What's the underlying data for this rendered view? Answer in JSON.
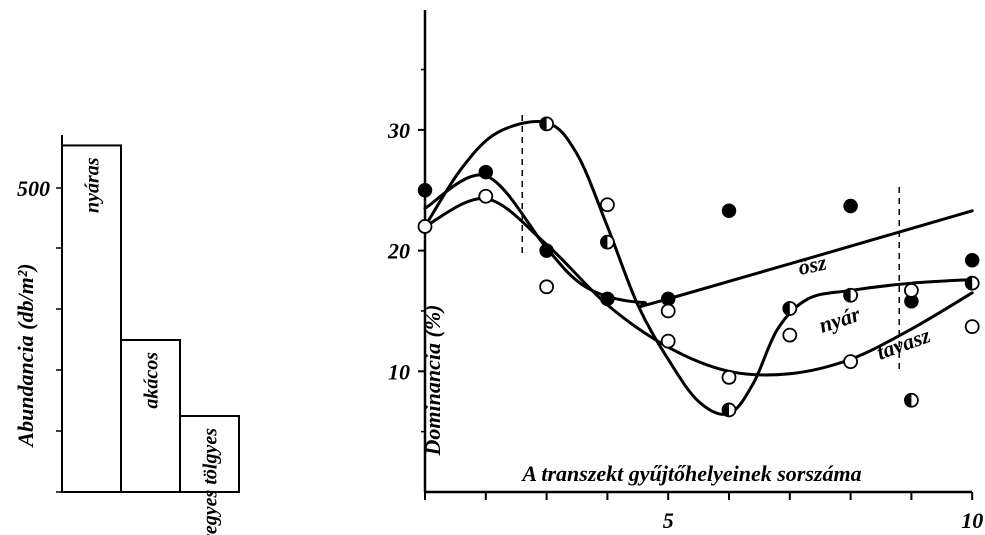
{
  "chart_data": [
    {
      "type": "bar",
      "ylabel": "Abundancia (db/m²)",
      "ytick_label": "500",
      "categories": [
        "nyáras",
        "akácos",
        "vegyes tölgyes"
      ],
      "values": [
        570,
        250,
        125
      ],
      "ylim": [
        0,
        700
      ],
      "grid": false,
      "colors": {
        "bar_fill": "#ffffff",
        "bar_stroke": "#000000"
      }
    },
    {
      "type": "scatter",
      "xlabel": "A transzekt gyűjtőhelyeinek sorszáma",
      "ylabel": "Dominancia (%)",
      "xticks": [
        "5",
        "10"
      ],
      "yticks": [
        "10",
        "20",
        "30"
      ],
      "xlim": [
        1,
        10
      ],
      "ylim": [
        0,
        40
      ],
      "grid": false,
      "season_labels": [
        "ősz",
        "nyár",
        "tavasz"
      ],
      "dividers_x": [
        2.6,
        8.8
      ],
      "series": [
        {
          "name": "ősz",
          "marker": "filled-circle",
          "points": [
            [
              1,
              25
            ],
            [
              2,
              26.5
            ],
            [
              3,
              20
            ],
            [
              4,
              16
            ],
            [
              5,
              16
            ],
            [
              6,
              23.3
            ],
            [
              7,
              15.2
            ],
            [
              8,
              23.7
            ],
            [
              9,
              15.8
            ],
            [
              10,
              19.2
            ]
          ],
          "trend": [
            [
              1,
              23.5
            ],
            [
              2,
              26.2
            ],
            [
              3,
              20.2
            ],
            [
              3.5,
              17.5
            ],
            [
              4,
              16.2
            ],
            [
              4.6,
              15.7
            ],
            [
              5,
              16
            ],
            [
              10,
              23.3
            ]
          ]
        },
        {
          "name": "nyár",
          "marker": "half-filled-circle",
          "points": [
            [
              3,
              30.5
            ],
            [
              4,
              20.7
            ],
            [
              6,
              6.8
            ],
            [
              7,
              15.2
            ],
            [
              8,
              16.3
            ],
            [
              9,
              7.6
            ],
            [
              10,
              17.3
            ]
          ],
          "trend": [
            [
              1,
              22
            ],
            [
              1.6,
              26.8
            ],
            [
              2.2,
              29.8
            ],
            [
              3,
              30.6
            ],
            [
              3.5,
              28
            ],
            [
              4,
              22
            ],
            [
              4.5,
              15.5
            ],
            [
              5,
              11
            ],
            [
              5.5,
              7.5
            ],
            [
              6,
              6.5
            ],
            [
              6.4,
              9
            ],
            [
              6.8,
              13.5
            ],
            [
              7.3,
              16
            ],
            [
              8,
              16.7
            ],
            [
              9,
              17.3
            ],
            [
              10,
              17.6
            ]
          ]
        },
        {
          "name": "tavasz",
          "marker": "open-circle",
          "points": [
            [
              1,
              22
            ],
            [
              2,
              24.5
            ],
            [
              3,
              17
            ],
            [
              4,
              23.8
            ],
            [
              5,
              15
            ],
            [
              5,
              12.5
            ],
            [
              6,
              9.5
            ],
            [
              7,
              13
            ],
            [
              8,
              10.8
            ],
            [
              9,
              16.7
            ],
            [
              10,
              13.7
            ]
          ],
          "trend": [
            [
              1,
              22
            ],
            [
              2,
              24.3
            ],
            [
              3,
              20.5
            ],
            [
              4,
              15.5
            ],
            [
              5,
              12
            ],
            [
              6,
              10
            ],
            [
              7,
              9.8
            ],
            [
              8,
              11
            ],
            [
              9,
              13.5
            ],
            [
              10,
              16.5
            ]
          ]
        }
      ]
    }
  ]
}
